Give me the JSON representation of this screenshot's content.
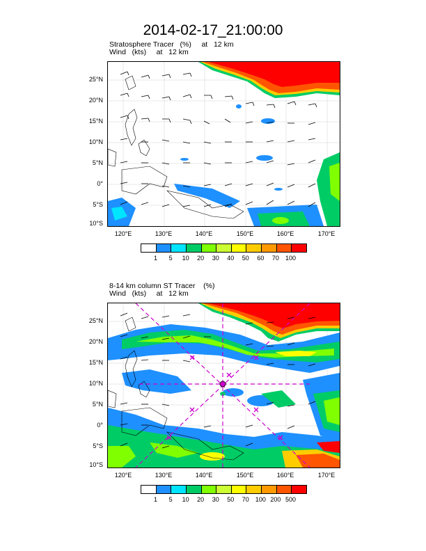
{
  "title": "2014-02-17_21:00:00",
  "panels": [
    {
      "subtitle_line1": "Stratosphere Tracer   (%)     at   12 km",
      "subtitle_line2": "Wind   (kts)     at   12 km",
      "lat_ticks": [
        "25°N",
        "20°N",
        "15°N",
        "10°N",
        "5°N",
        "0°",
        "5°S",
        "10°S"
      ],
      "lon_ticks": [
        "120°E",
        "130°E",
        "140°E",
        "150°E",
        "160°E",
        "170°E"
      ],
      "colorbar_labels": [
        "1",
        "5",
        "10",
        "20",
        "30",
        "40",
        "50",
        "60",
        "70",
        "100"
      ],
      "colorbar_colors": [
        "#ffffff",
        "#1e90ff",
        "#00e5ff",
        "#00cc66",
        "#7fff00",
        "#ccff33",
        "#ffff00",
        "#ffcc00",
        "#ff9900",
        "#ff5500",
        "#ff0000"
      ]
    },
    {
      "subtitle_line1": "8-14 km column ST Tracer    (%)",
      "subtitle_line2": "Wind   (kts)     at   12 km",
      "lat_ticks": [
        "25°N",
        "20°N",
        "15°N",
        "10°N",
        "5°N",
        "0°",
        "5°S",
        "10°S"
      ],
      "lon_ticks": [
        "120°E",
        "130°E",
        "140°E",
        "150°E",
        "160°E",
        "170°E"
      ],
      "colorbar_labels": [
        "1",
        "5",
        "10",
        "20",
        "30",
        "50",
        "70",
        "100",
        "200",
        "500"
      ],
      "colorbar_colors": [
        "#ffffff",
        "#1e90ff",
        "#00e5ff",
        "#00cc66",
        "#7fff00",
        "#ccff33",
        "#ffff00",
        "#ffcc00",
        "#ff9900",
        "#ff5500",
        "#ff0000"
      ]
    }
  ]
}
